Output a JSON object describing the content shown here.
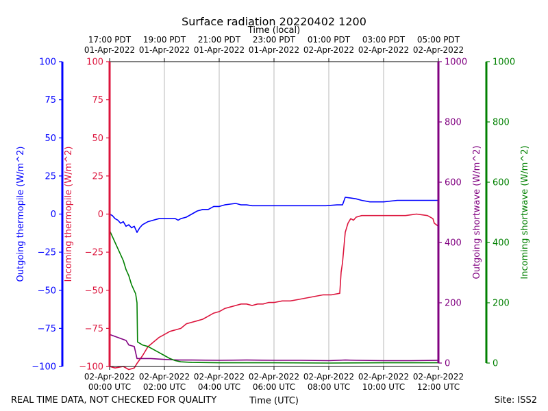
{
  "chart_data": {
    "type": "line",
    "title": "Surface radiation 20220402 1200",
    "top_axis_label": "Time (local)",
    "bottom_axis_label": "Time (UTC)",
    "footer_left": "REAL TIME DATA, NOT CHECKED FOR QUALITY",
    "footer_right": "Site: ISS2",
    "x_range_hours_utc": [
      0,
      12
    ],
    "bottom_ticks": [
      {
        "h": 0,
        "line1": "02-Apr-2022",
        "line2": "00:00 UTC"
      },
      {
        "h": 2,
        "line1": "02-Apr-2022",
        "line2": "02:00 UTC"
      },
      {
        "h": 4,
        "line1": "02-Apr-2022",
        "line2": "04:00 UTC"
      },
      {
        "h": 6,
        "line1": "02-Apr-2022",
        "line2": "06:00 UTC"
      },
      {
        "h": 8,
        "line1": "02-Apr-2022",
        "line2": "08:00 UTC"
      },
      {
        "h": 10,
        "line1": "02-Apr-2022",
        "line2": "10:00 UTC"
      },
      {
        "h": 12,
        "line1": "02-Apr-2022",
        "line2": "12:00 UTC"
      }
    ],
    "top_ticks": [
      {
        "h": 0,
        "line1": "17:00 PDT",
        "line2": "01-Apr-2022"
      },
      {
        "h": 2,
        "line1": "19:00 PDT",
        "line2": "01-Apr-2022"
      },
      {
        "h": 4,
        "line1": "21:00 PDT",
        "line2": "01-Apr-2022"
      },
      {
        "h": 6,
        "line1": "23:00 PDT",
        "line2": "01-Apr-2022"
      },
      {
        "h": 8,
        "line1": "01:00 PDT",
        "line2": "02-Apr-2022"
      },
      {
        "h": 10,
        "line1": "03:00 PDT",
        "line2": "02-Apr-2022"
      },
      {
        "h": 12,
        "line1": "05:00 PDT",
        "line2": "02-Apr-2022"
      }
    ],
    "grid": "vertical",
    "axes": [
      {
        "id": "out_thermo",
        "label": "Outgoing thermopile (W/m^2)",
        "color": "#0000ff",
        "range": [
          -100,
          100
        ],
        "ticks": [
          -100,
          -75,
          -50,
          -25,
          0,
          25,
          50,
          75,
          100
        ]
      },
      {
        "id": "in_thermo",
        "label": "Incoming thermopile (W/m^2)",
        "color": "#dc143c",
        "range": [
          -100,
          100
        ],
        "ticks": [
          -100,
          -75,
          -50,
          -25,
          0,
          25,
          50,
          75,
          100
        ]
      },
      {
        "id": "out_sw",
        "label": "Outgoing shortwave (W/m^2)",
        "color": "#800080",
        "range": [
          0,
          1000
        ],
        "ticks": [
          0,
          200,
          400,
          600,
          800,
          1000
        ]
      },
      {
        "id": "in_sw",
        "label": "Incoming shortwave (W/m^2)",
        "color": "#008000",
        "range": [
          0,
          1000
        ],
        "ticks": [
          0,
          200,
          400,
          600,
          800,
          1000
        ]
      }
    ],
    "series": [
      {
        "axis": "out_thermo",
        "color": "#0000ff",
        "points": [
          [
            0,
            0
          ],
          [
            0.1,
            -1
          ],
          [
            0.2,
            -3
          ],
          [
            0.3,
            -4
          ],
          [
            0.4,
            -6
          ],
          [
            0.5,
            -5
          ],
          [
            0.6,
            -8
          ],
          [
            0.7,
            -7
          ],
          [
            0.8,
            -9
          ],
          [
            0.9,
            -8
          ],
          [
            1.0,
            -12
          ],
          [
            1.1,
            -9
          ],
          [
            1.2,
            -7
          ],
          [
            1.4,
            -5
          ],
          [
            1.6,
            -4
          ],
          [
            1.8,
            -3
          ],
          [
            2.0,
            -3
          ],
          [
            2.2,
            -3
          ],
          [
            2.4,
            -3
          ],
          [
            2.5,
            -4
          ],
          [
            2.6,
            -3
          ],
          [
            2.8,
            -2
          ],
          [
            3.0,
            0
          ],
          [
            3.2,
            2
          ],
          [
            3.4,
            3
          ],
          [
            3.6,
            3
          ],
          [
            3.8,
            5
          ],
          [
            4.0,
            5
          ],
          [
            4.2,
            6
          ],
          [
            4.4,
            6.5
          ],
          [
            4.6,
            7
          ],
          [
            4.8,
            6
          ],
          [
            5.0,
            6
          ],
          [
            5.2,
            5.5
          ],
          [
            5.5,
            5.5
          ],
          [
            6.0,
            5.5
          ],
          [
            6.5,
            5.5
          ],
          [
            7.0,
            5.5
          ],
          [
            7.5,
            5.5
          ],
          [
            7.9,
            5.5
          ],
          [
            8.3,
            6
          ],
          [
            8.5,
            6
          ],
          [
            8.6,
            11
          ],
          [
            8.8,
            10.5
          ],
          [
            9.0,
            10
          ],
          [
            9.2,
            9
          ],
          [
            9.5,
            8
          ],
          [
            10.0,
            8
          ],
          [
            10.5,
            9
          ],
          [
            11.0,
            9
          ],
          [
            11.5,
            9
          ],
          [
            12.0,
            9
          ]
        ]
      },
      {
        "axis": "in_thermo",
        "color": "#dc143c",
        "points": [
          [
            0.0,
            -100
          ],
          [
            0.2,
            -101
          ],
          [
            0.5,
            -100
          ],
          [
            0.7,
            -102
          ],
          [
            0.9,
            -101
          ],
          [
            1.0,
            -98
          ],
          [
            1.2,
            -93
          ],
          [
            1.4,
            -87
          ],
          [
            1.6,
            -84
          ],
          [
            1.8,
            -81
          ],
          [
            2.0,
            -79
          ],
          [
            2.2,
            -77
          ],
          [
            2.4,
            -76
          ],
          [
            2.6,
            -75
          ],
          [
            2.8,
            -72
          ],
          [
            3.0,
            -71
          ],
          [
            3.2,
            -70
          ],
          [
            3.4,
            -69
          ],
          [
            3.6,
            -67
          ],
          [
            3.8,
            -65
          ],
          [
            4.0,
            -64
          ],
          [
            4.2,
            -62
          ],
          [
            4.4,
            -61
          ],
          [
            4.6,
            -60
          ],
          [
            4.8,
            -59
          ],
          [
            5.0,
            -59
          ],
          [
            5.2,
            -60
          ],
          [
            5.4,
            -59
          ],
          [
            5.6,
            -59
          ],
          [
            5.8,
            -58
          ],
          [
            6.0,
            -58
          ],
          [
            6.3,
            -57
          ],
          [
            6.6,
            -57
          ],
          [
            6.9,
            -56
          ],
          [
            7.2,
            -55
          ],
          [
            7.5,
            -54
          ],
          [
            7.8,
            -53
          ],
          [
            8.1,
            -53
          ],
          [
            8.4,
            -52
          ],
          [
            8.45,
            -38
          ],
          [
            8.5,
            -32
          ],
          [
            8.55,
            -22
          ],
          [
            8.6,
            -12
          ],
          [
            8.7,
            -6
          ],
          [
            8.8,
            -3
          ],
          [
            8.9,
            -4
          ],
          [
            9.0,
            -2
          ],
          [
            9.2,
            -1
          ],
          [
            9.6,
            -1
          ],
          [
            10.0,
            -1
          ],
          [
            10.4,
            -1
          ],
          [
            10.8,
            -1
          ],
          [
            11.2,
            0
          ],
          [
            11.6,
            -1
          ],
          [
            11.8,
            -3
          ],
          [
            11.85,
            -6
          ],
          [
            12.0,
            -8
          ]
        ]
      },
      {
        "axis": "out_sw",
        "color": "#800080",
        "points": [
          [
            0,
            95
          ],
          [
            0.3,
            85
          ],
          [
            0.6,
            75
          ],
          [
            0.7,
            60
          ],
          [
            0.9,
            55
          ],
          [
            1.0,
            15
          ],
          [
            1.2,
            15
          ],
          [
            1.5,
            15
          ],
          [
            2.0,
            12
          ],
          [
            2.5,
            10
          ],
          [
            3.0,
            10
          ],
          [
            4.0,
            9
          ],
          [
            5.0,
            10
          ],
          [
            6.0,
            9
          ],
          [
            7.0,
            9
          ],
          [
            8.0,
            8
          ],
          [
            8.6,
            10
          ],
          [
            9.0,
            9
          ],
          [
            10.0,
            8
          ],
          [
            11.0,
            8
          ],
          [
            12.0,
            9
          ]
        ]
      },
      {
        "axis": "in_sw",
        "color": "#008000",
        "points": [
          [
            0,
            440
          ],
          [
            0.1,
            420
          ],
          [
            0.2,
            400
          ],
          [
            0.3,
            380
          ],
          [
            0.4,
            360
          ],
          [
            0.5,
            340
          ],
          [
            0.6,
            310
          ],
          [
            0.7,
            290
          ],
          [
            0.8,
            260
          ],
          [
            0.9,
            240
          ],
          [
            0.95,
            230
          ],
          [
            1.0,
            200
          ],
          [
            1.02,
            70
          ],
          [
            1.2,
            60
          ],
          [
            1.4,
            55
          ],
          [
            1.6,
            45
          ],
          [
            1.8,
            35
          ],
          [
            2.0,
            25
          ],
          [
            2.2,
            15
          ],
          [
            2.4,
            8
          ],
          [
            2.6,
            4
          ],
          [
            3.0,
            2
          ],
          [
            4.0,
            1
          ],
          [
            6.0,
            1
          ],
          [
            8.0,
            0
          ],
          [
            10.0,
            1
          ],
          [
            12.0,
            1
          ]
        ]
      }
    ]
  }
}
